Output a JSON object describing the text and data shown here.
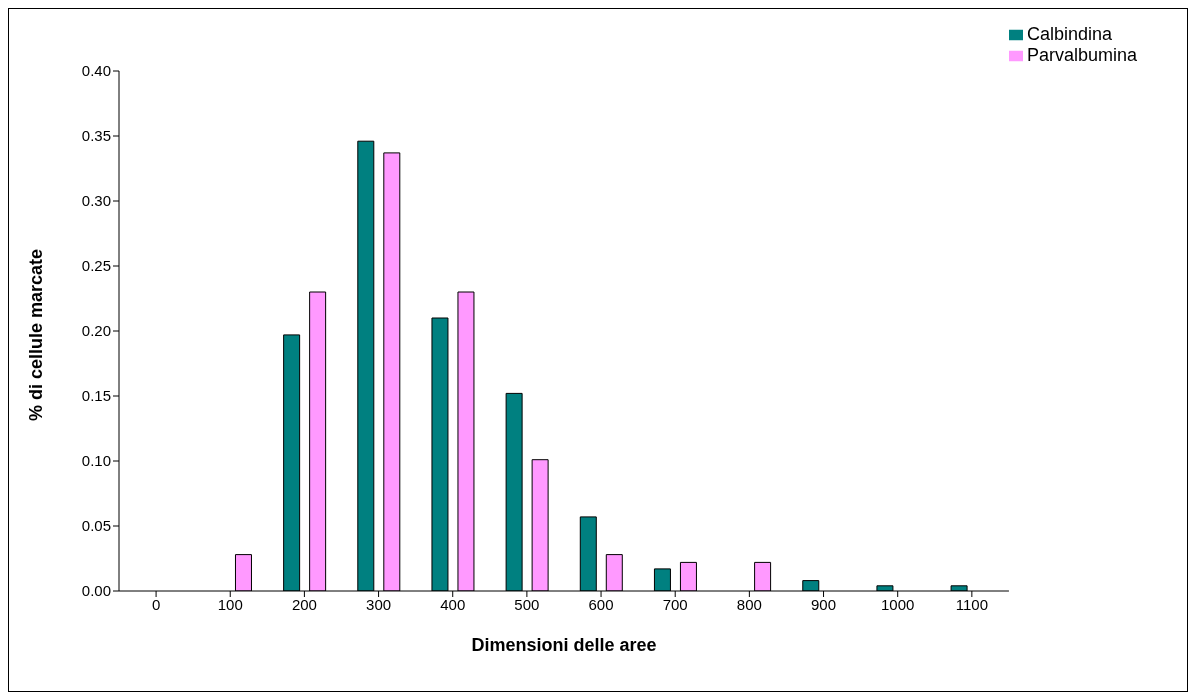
{
  "chart_data": {
    "type": "bar",
    "xlabel": "Dimensioni delle aree",
    "ylabel": "% di cellule marcate",
    "categories": [
      "0",
      "100",
      "200",
      "300",
      "400",
      "500",
      "600",
      "700",
      "800",
      "900",
      "1000",
      "1100"
    ],
    "series": [
      {
        "name": "Calbindina",
        "color": "#008080",
        "values": [
          0,
          0,
          0.197,
          0.346,
          0.21,
          0.152,
          0.057,
          0.017,
          0,
          0.008,
          0.004,
          0.004
        ]
      },
      {
        "name": "Parvalbumina",
        "color": "#ff99ff",
        "values": [
          0,
          0.028,
          0.23,
          0.337,
          0.23,
          0.101,
          0.028,
          0.022,
          0.022,
          null,
          null,
          null
        ]
      }
    ],
    "ylim": [
      0,
      0.4
    ],
    "yticks": [
      {
        "value": 0,
        "label": "0.00"
      },
      {
        "value": 0.05,
        "label": "0.05"
      },
      {
        "value": 0.1,
        "label": "0.10"
      },
      {
        "value": 0.15,
        "label": "0.15"
      },
      {
        "value": 0.2,
        "label": "0.20"
      },
      {
        "value": 0.25,
        "label": "0.25"
      },
      {
        "value": 0.3,
        "label": "0.30"
      },
      {
        "value": 0.35,
        "label": "0.35"
      },
      {
        "value": 0.4,
        "label": "0.40"
      }
    ],
    "grid": false,
    "legend": "top right"
  }
}
